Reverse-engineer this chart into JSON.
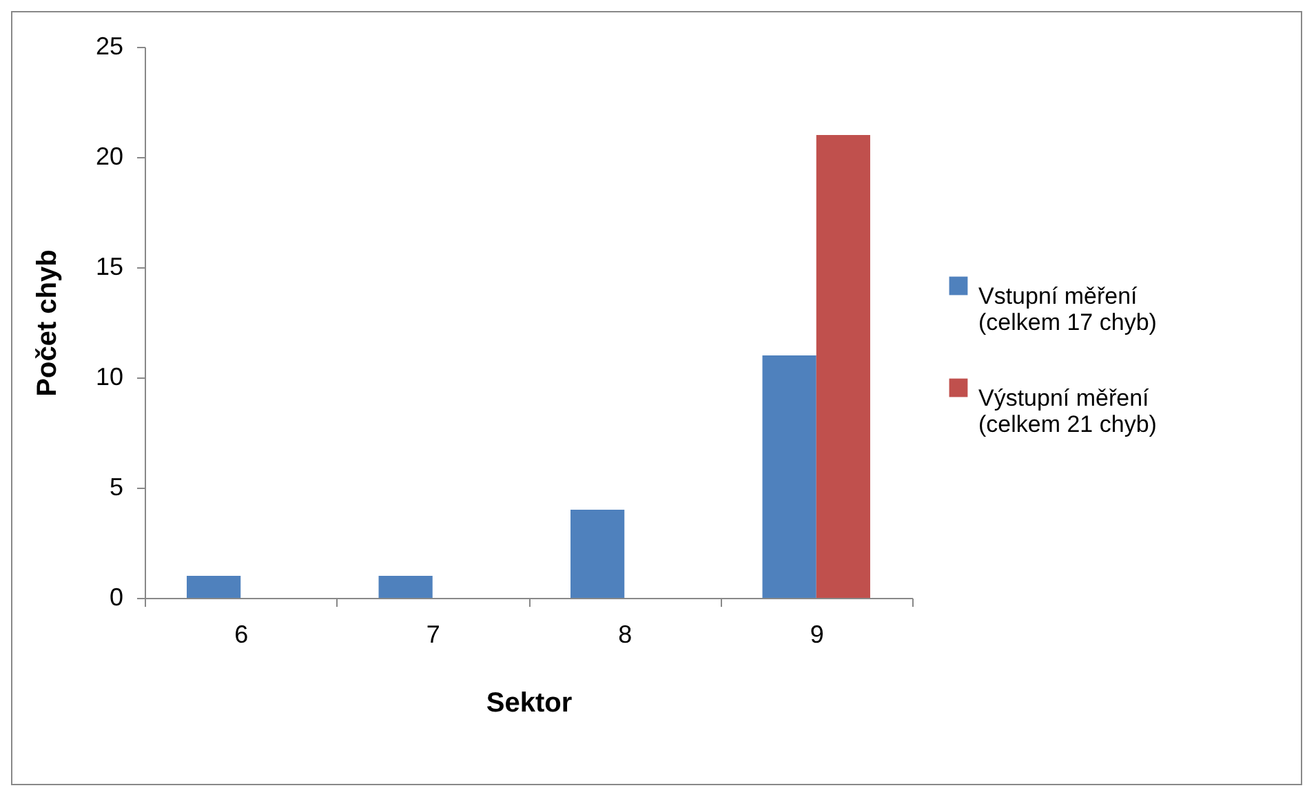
{
  "chart_data": {
    "type": "bar",
    "xlabel": "Sektor",
    "ylabel": "Počet chyb",
    "categories": [
      "6",
      "7",
      "8",
      "9"
    ],
    "series": [
      {
        "name": "Vstupní měření (celkem 17 chyb)",
        "color": "#4f81bd",
        "values": [
          1,
          1,
          4,
          11
        ]
      },
      {
        "name": "Výstupní měření (celkem 21 chyb)",
        "color": "#c0504d",
        "values": [
          0,
          0,
          0,
          21
        ]
      }
    ],
    "ylim": [
      0,
      25
    ],
    "yticks": [
      0,
      5,
      10,
      15,
      20,
      25
    ],
    "grid": false,
    "legend": "right"
  }
}
